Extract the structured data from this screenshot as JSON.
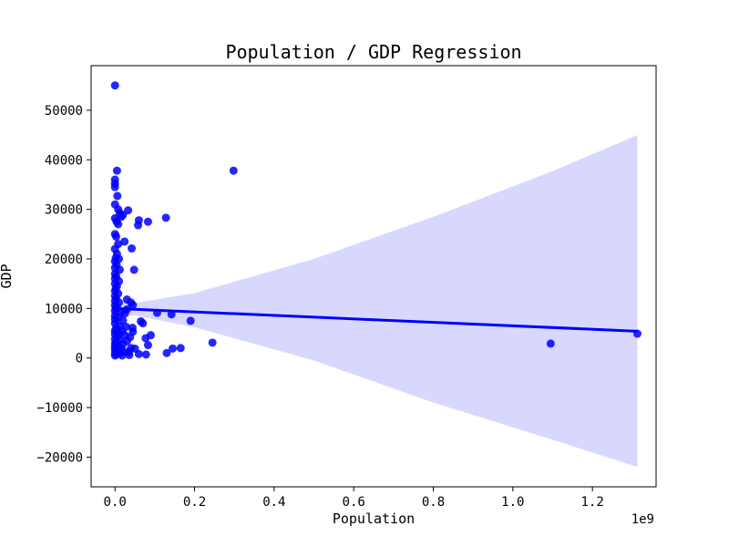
{
  "chart_data": {
    "type": "scatter",
    "title": "Population / GDP Regression",
    "xlabel": "Population",
    "ylabel": "GDP",
    "x_offset_label": "1e9",
    "xlim": [
      -0.06,
      1.36
    ],
    "ylim": [
      -26000,
      59000
    ],
    "xticks": [
      0.0,
      0.2,
      0.4,
      0.6,
      0.8,
      1.0,
      1.2
    ],
    "xtick_labels": [
      "0.0",
      "0.2",
      "0.4",
      "0.6",
      "0.8",
      "1.0",
      "1.2"
    ],
    "yticks": [
      -20000,
      -10000,
      0,
      10000,
      20000,
      30000,
      40000,
      50000
    ],
    "ytick_labels": [
      "−20000",
      "−10000",
      "0",
      "10000",
      "20000",
      "30000",
      "40000",
      "50000"
    ],
    "grid": false,
    "colors": {
      "points": "#0000ff",
      "line": "#0000ff",
      "band": "#d8d8ff"
    },
    "regression": {
      "x": [
        0.0,
        1.313
      ],
      "y": [
        10000,
        5400
      ]
    },
    "confidence_band": {
      "x": [
        0.0,
        0.05,
        0.2,
        0.5,
        0.8,
        1.1,
        1.313
      ],
      "upper": [
        11200,
        11100,
        13100,
        20000,
        28500,
        37700,
        45000
      ],
      "lower": [
        8800,
        8600,
        6200,
        -500,
        -9000,
        -16500,
        -22000
      ]
    },
    "points": [
      [
        0.0,
        55000
      ],
      [
        0.005,
        37800
      ],
      [
        0.0,
        36000
      ],
      [
        0.0,
        35200
      ],
      [
        0.0,
        34500
      ],
      [
        0.006,
        32700
      ],
      [
        0.0,
        31000
      ],
      [
        0.008,
        30000
      ],
      [
        0.033,
        29800
      ],
      [
        0.012,
        29200
      ],
      [
        0.02,
        28900
      ],
      [
        0.0,
        28200
      ],
      [
        0.016,
        28500
      ],
      [
        0.004,
        27500
      ],
      [
        0.008,
        27000
      ],
      [
        0.06,
        27800
      ],
      [
        0.058,
        26800
      ],
      [
        0.083,
        27500
      ],
      [
        0.128,
        28300
      ],
      [
        0.298,
        37800
      ],
      [
        0.0,
        25000
      ],
      [
        0.003,
        24500
      ],
      [
        0.024,
        23500
      ],
      [
        0.008,
        23000
      ],
      [
        0.042,
        22100
      ],
      [
        0.0,
        22000
      ],
      [
        0.005,
        21000
      ],
      [
        0.002,
        20200
      ],
      [
        0.01,
        20000
      ],
      [
        0.0,
        19500
      ],
      [
        0.004,
        18800
      ],
      [
        0.0,
        18200
      ],
      [
        0.012,
        17800
      ],
      [
        0.048,
        17800
      ],
      [
        0.0,
        17000
      ],
      [
        0.003,
        16500
      ],
      [
        0.0,
        16000
      ],
      [
        0.01,
        15500
      ],
      [
        0.0,
        15000
      ],
      [
        0.005,
        14500
      ],
      [
        0.002,
        14000
      ],
      [
        0.0,
        13500
      ],
      [
        0.008,
        13000
      ],
      [
        0.0,
        12500
      ],
      [
        0.003,
        12000
      ],
      [
        0.03,
        11800
      ],
      [
        0.0,
        11500
      ],
      [
        0.01,
        11200
      ],
      [
        0.04,
        11200
      ],
      [
        0.045,
        10700
      ],
      [
        0.0,
        10600
      ],
      [
        0.005,
        10200
      ],
      [
        0.002,
        10000
      ],
      [
        0.03,
        9800
      ],
      [
        0.0,
        9500
      ],
      [
        0.015,
        9300
      ],
      [
        0.025,
        9000
      ],
      [
        0.106,
        9100
      ],
      [
        0.142,
        8800
      ],
      [
        0.0,
        8500
      ],
      [
        0.008,
        8200
      ],
      [
        0.0,
        7800
      ],
      [
        0.02,
        7600
      ],
      [
        0.19,
        7500
      ],
      [
        0.065,
        7400
      ],
      [
        0.07,
        7000
      ],
      [
        0.0,
        7000
      ],
      [
        0.012,
        6500
      ],
      [
        0.028,
        6300
      ],
      [
        0.044,
        6100
      ],
      [
        0.003,
        6000
      ],
      [
        0.0,
        5500
      ],
      [
        0.018,
        5400
      ],
      [
        0.045,
        5300
      ],
      [
        0.01,
        5000
      ],
      [
        0.0,
        4800
      ],
      [
        0.025,
        4600
      ],
      [
        0.09,
        4600
      ],
      [
        0.005,
        4200
      ],
      [
        0.038,
        4200
      ],
      [
        0.077,
        4000
      ],
      [
        0.0,
        3800
      ],
      [
        0.012,
        3600
      ],
      [
        0.03,
        3400
      ],
      [
        0.245,
        3100
      ],
      [
        0.002,
        3200
      ],
      [
        0.0,
        2900
      ],
      [
        0.02,
        2800
      ],
      [
        0.083,
        2600
      ],
      [
        0.008,
        2500
      ],
      [
        0.0,
        2300
      ],
      [
        0.04,
        2000
      ],
      [
        0.05,
        1900
      ],
      [
        0.145,
        1900
      ],
      [
        0.165,
        2000
      ],
      [
        0.015,
        1900
      ],
      [
        0.0,
        1700
      ],
      [
        0.005,
        1500
      ],
      [
        0.022,
        1300
      ],
      [
        0.035,
        1200
      ],
      [
        0.13,
        1000
      ],
      [
        0.0,
        1000
      ],
      [
        0.01,
        900
      ],
      [
        0.06,
        800
      ],
      [
        0.078,
        700
      ],
      [
        0.003,
        700
      ],
      [
        0.036,
        600
      ],
      [
        0.0,
        500
      ],
      [
        0.018,
        500
      ],
      [
        1.095,
        2900
      ],
      [
        1.313,
        4900
      ]
    ]
  }
}
